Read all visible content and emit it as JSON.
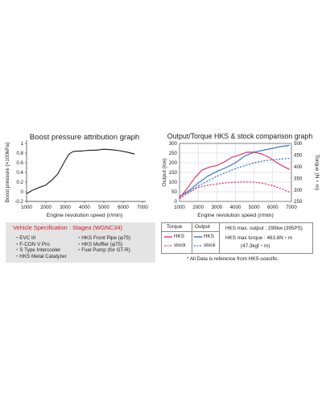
{
  "charts": {
    "left_title": "Boost pressure attribution graph",
    "right_title": "Output/Torque HKS & stock comparison graph"
  },
  "chart_data": [
    {
      "type": "line",
      "title": "Boost pressure attribution graph",
      "xlabel": "Engine revolution speed (r/min)",
      "ylabel": "Boost pressure (×100kPa)",
      "xlim": [
        1000,
        7000
      ],
      "ylim": [
        -0.2,
        1.0
      ],
      "xticks": [
        "1000",
        "2000",
        "3000",
        "4000",
        "5000",
        "6000",
        "7000"
      ],
      "yticks": [
        "-0.2",
        "0",
        "0.2",
        "0.4",
        "0.6",
        "0.8",
        "1"
      ],
      "grid": false,
      "series": [
        {
          "color": "#1a1a1a",
          "x": [
            1000,
            1300,
            1600,
            2000,
            2300,
            2600,
            2800,
            3000,
            3200,
            3400,
            3600,
            3800,
            4000,
            4300,
            4600,
            5000,
            5400,
            5800,
            6200,
            6600
          ],
          "y": [
            -0.04,
            0.03,
            0.08,
            0.14,
            0.24,
            0.36,
            0.5,
            0.65,
            0.78,
            0.83,
            0.84,
            0.84,
            0.85,
            0.86,
            0.86,
            0.88,
            0.87,
            0.85,
            0.82,
            0.78
          ]
        }
      ]
    },
    {
      "type": "line",
      "title": "Output/Torque HKS & stock comparison graph",
      "xlabel": "Engine revolution speed (r/min)",
      "ylabel": "Output (kw)",
      "y2label": "Torque (N・m)",
      "xlim": [
        1000,
        7000
      ],
      "ylim": [
        0,
        300
      ],
      "y2lim": [
        250,
        500
      ],
      "xticks": [
        "1000",
        "2000",
        "3000",
        "4000",
        "5000",
        "6000",
        "7000"
      ],
      "yticks": [
        "0",
        "50",
        "100",
        "150",
        "200",
        "250",
        "300"
      ],
      "y2ticks": [
        "250",
        "300",
        "350",
        "400",
        "450",
        "500"
      ],
      "grid": true,
      "series": [
        {
          "axis": "left",
          "color": "#3a78c4",
          "dash": false,
          "x": [
            1000,
            1500,
            2000,
            2500,
            3000,
            3500,
            4000,
            4500,
            5000,
            5500,
            6000,
            6500,
            6900
          ],
          "y": [
            25,
            55,
            95,
            130,
            155,
            175,
            200,
            235,
            255,
            265,
            275,
            285,
            290
          ]
        },
        {
          "axis": "left",
          "color": "#3a78c4",
          "dash": true,
          "x": [
            1000,
            1500,
            2000,
            2500,
            3000,
            3500,
            4000,
            4500,
            5000,
            5500,
            6000,
            6500,
            6900
          ],
          "y": [
            25,
            50,
            80,
            105,
            130,
            150,
            170,
            185,
            200,
            210,
            215,
            220,
            222
          ]
        },
        {
          "axis": "right",
          "color": "#e0386a",
          "dash": false,
          "x": [
            1000,
            1400,
            1800,
            2200,
            2600,
            3000,
            3400,
            3800,
            4200,
            4600,
            5000,
            5400,
            5800,
            6200,
            6600,
            6900
          ],
          "y": [
            265,
            305,
            350,
            385,
            398,
            405,
            420,
            440,
            450,
            462,
            462,
            455,
            440,
            418,
            400,
            388
          ]
        },
        {
          "axis": "right",
          "color": "#e0386a",
          "dash": true,
          "x": [
            1000,
            1500,
            2000,
            2500,
            3000,
            3500,
            4000,
            4500,
            5000,
            5500,
            6000,
            6500,
            6900
          ],
          "y": [
            262,
            288,
            310,
            320,
            325,
            330,
            333,
            334,
            333,
            328,
            318,
            303,
            290
          ]
        }
      ]
    }
  ],
  "spec": {
    "title": "Vehicle Specification : Stagea (WGNC34)",
    "left_items": [
      "・EVC III",
      "・F-CON V Pro",
      "・S Type Intercooler",
      "・HKS Metal Catalyzer"
    ],
    "right_items": [
      "・HKS Front Pipe (φ75)",
      "・HKS Muffler (φ75)",
      "・Fuel Pump (for GT-R)"
    ]
  },
  "legend_table": {
    "torque_header": "Torque",
    "output_header": "Output",
    "hks": "HKS",
    "stock": "stock",
    "max_output": "HKS max. output : 290kw (395PS)",
    "max_torque": "HKS max torque : 463.8N・m",
    "max_torque_kgf": "(47.3kgf・m)",
    "colors": {
      "torque": "#e0386a",
      "output": "#3a78c4"
    }
  },
  "note": "* All Data is reference from HKS-soecific."
}
